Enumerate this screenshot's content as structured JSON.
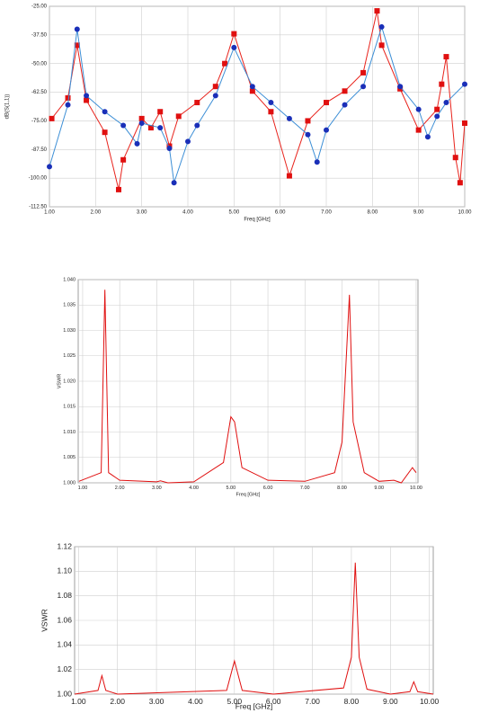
{
  "chart_data": [
    {
      "type": "line",
      "ylabel": "dB(S(1,1))",
      "xlabel": "Freq [GHz]",
      "grid": true,
      "xlim": [
        1,
        10
      ],
      "ylim": [
        -112.5,
        -25
      ],
      "xticks": [
        {
          "value": 1,
          "label": "1.00"
        },
        {
          "value": 2,
          "label": "2.00"
        },
        {
          "value": 3,
          "label": "3.00"
        },
        {
          "value": 4,
          "label": "4.00"
        },
        {
          "value": 5,
          "label": "5.00"
        },
        {
          "value": 6,
          "label": "6.00"
        },
        {
          "value": 7,
          "label": "7.00"
        },
        {
          "value": 8,
          "label": "8.00"
        },
        {
          "value": 9,
          "label": "9.00"
        },
        {
          "value": 10,
          "label": "10.00"
        }
      ],
      "yticks": [
        {
          "value": -25,
          "label": "-25.00"
        },
        {
          "value": -37.5,
          "label": "-37.50"
        },
        {
          "value": -50,
          "label": "-50.00"
        },
        {
          "value": -62.5,
          "label": "-62.50"
        },
        {
          "value": -75,
          "label": "-75.00"
        },
        {
          "value": -87.5,
          "label": "-87.50"
        },
        {
          "value": -100,
          "label": "-100.00"
        },
        {
          "value": -112.5,
          "label": "-112.50"
        }
      ],
      "series": [
        {
          "color": "#e8231c",
          "marker": "square",
          "marker_color": "#e01010",
          "x": [
            1.05,
            1.4,
            1.6,
            1.8,
            2.2,
            2.5,
            2.6,
            3.0,
            3.2,
            3.4,
            3.6,
            3.8,
            4.2,
            4.6,
            4.8,
            5.0,
            5.4,
            5.8,
            6.2,
            6.6,
            7.0,
            7.4,
            7.8,
            8.1,
            8.2,
            8.6,
            9.0,
            9.4,
            9.5,
            9.6,
            9.8,
            9.9,
            10.0
          ],
          "values": [
            -74,
            -65,
            -42,
            -66,
            -80,
            -105,
            -92,
            -74,
            -78,
            -71,
            -86,
            -73,
            -67,
            -60,
            -50,
            -37,
            -62,
            -71,
            -99,
            -75,
            -67,
            -62,
            -54,
            -27,
            -42,
            -61,
            -79,
            -70,
            -59,
            -47,
            -91,
            -102,
            -76
          ]
        },
        {
          "color": "#3d8fd6",
          "marker": "circle",
          "marker_color": "#1a2fb8",
          "x": [
            1.0,
            1.4,
            1.6,
            1.8,
            2.2,
            2.6,
            2.9,
            3.0,
            3.4,
            3.6,
            3.7,
            4.0,
            4.2,
            4.6,
            5.0,
            5.4,
            5.8,
            6.2,
            6.6,
            6.8,
            7.0,
            7.4,
            7.8,
            8.2,
            8.6,
            9.0,
            9.2,
            9.4,
            9.6,
            10.0
          ],
          "values": [
            -95,
            -68,
            -35,
            -64,
            -71,
            -77,
            -85,
            -76,
            -78,
            -87,
            -102,
            -84,
            -77,
            -64,
            -43,
            -60,
            -67,
            -74,
            -81,
            -93,
            -79,
            -68,
            -60,
            -34,
            -60,
            -70,
            -82,
            -73,
            -67,
            -59
          ]
        }
      ]
    },
    {
      "type": "line",
      "ylabel": "VSWR",
      "xlabel": "Freq [GHz]",
      "grid": true,
      "xlim": [
        0.88,
        10.05
      ],
      "ylim": [
        1,
        1.04
      ],
      "xticks": [
        {
          "value": 1,
          "label": "1.00"
        },
        {
          "value": 2,
          "label": "2.00"
        },
        {
          "value": 3,
          "label": "3.00"
        },
        {
          "value": 4,
          "label": "4.00"
        },
        {
          "value": 5,
          "label": "5.00"
        },
        {
          "value": 6,
          "label": "6.00"
        },
        {
          "value": 7,
          "label": "7.00"
        },
        {
          "value": 8,
          "label": "8.00"
        },
        {
          "value": 9,
          "label": "9.00"
        },
        {
          "value": 10,
          "label": "10.00"
        }
      ],
      "yticks": [
        {
          "value": 1,
          "label": "1.000"
        },
        {
          "value": 1.005,
          "label": "1.005"
        },
        {
          "value": 1.01,
          "label": "1.010"
        },
        {
          "value": 1.015,
          "label": "1.015"
        },
        {
          "value": 1.02,
          "label": "1.020"
        },
        {
          "value": 1.025,
          "label": "1.025"
        },
        {
          "value": 1.03,
          "label": "1.030"
        },
        {
          "value": 1.035,
          "label": "1.035"
        },
        {
          "value": 1.04,
          "label": "1.040"
        }
      ],
      "series": [
        {
          "color": "#e01010",
          "x": [
            0.9,
            1.5,
            1.6,
            1.7,
            2.0,
            3.0,
            3.1,
            3.3,
            4.0,
            4.8,
            5.0,
            5.1,
            5.3,
            6.0,
            7.0,
            7.8,
            8.0,
            8.2,
            8.3,
            8.6,
            9.0,
            9.4,
            9.6,
            9.9,
            10.0
          ],
          "values": [
            1.0003,
            1.002,
            1.038,
            1.002,
            1.0005,
            1.0002,
            1.0004,
            1.0,
            1.0002,
            1.004,
            1.013,
            1.012,
            1.003,
            1.0005,
            1.0003,
            1.002,
            1.008,
            1.037,
            1.012,
            1.002,
            1.0003,
            1.0005,
            1.0,
            1.003,
            1.002
          ]
        }
      ]
    },
    {
      "type": "line",
      "ylabel": "VSWR",
      "xlabel": "Freq [GHz]",
      "grid": true,
      "xlim": [
        0.9,
        10.1
      ],
      "ylim": [
        1,
        1.12
      ],
      "xticks": [
        {
          "value": 1,
          "label": "1.00"
        },
        {
          "value": 2,
          "label": "2.00"
        },
        {
          "value": 3,
          "label": "3.00"
        },
        {
          "value": 4,
          "label": "4.00"
        },
        {
          "value": 5,
          "label": "5.00"
        },
        {
          "value": 6,
          "label": "6.00"
        },
        {
          "value": 7,
          "label": "7.00"
        },
        {
          "value": 8,
          "label": "8.00"
        },
        {
          "value": 9,
          "label": "9.00"
        },
        {
          "value": 10,
          "label": "10.00"
        }
      ],
      "yticks": [
        {
          "value": 1,
          "label": "1.00"
        },
        {
          "value": 1.02,
          "label": "1.02"
        },
        {
          "value": 1.04,
          "label": "1.04"
        },
        {
          "value": 1.06,
          "label": "1.06"
        },
        {
          "value": 1.08,
          "label": "1.08"
        },
        {
          "value": 1.1,
          "label": "1.10"
        },
        {
          "value": 1.12,
          "label": "1.12"
        }
      ],
      "series": [
        {
          "color": "#e01010",
          "x": [
            0.9,
            1.5,
            1.6,
            1.7,
            2.0,
            4.8,
            5.0,
            5.2,
            6.0,
            7.8,
            8.0,
            8.1,
            8.2,
            8.4,
            9.0,
            9.5,
            9.6,
            9.7,
            10.1
          ],
          "values": [
            1.0,
            1.003,
            1.015,
            1.003,
            1.0,
            1.003,
            1.027,
            1.003,
            1.0,
            1.005,
            1.03,
            1.107,
            1.03,
            1.004,
            1.0,
            1.002,
            1.01,
            1.002,
            1.0
          ]
        }
      ]
    }
  ]
}
